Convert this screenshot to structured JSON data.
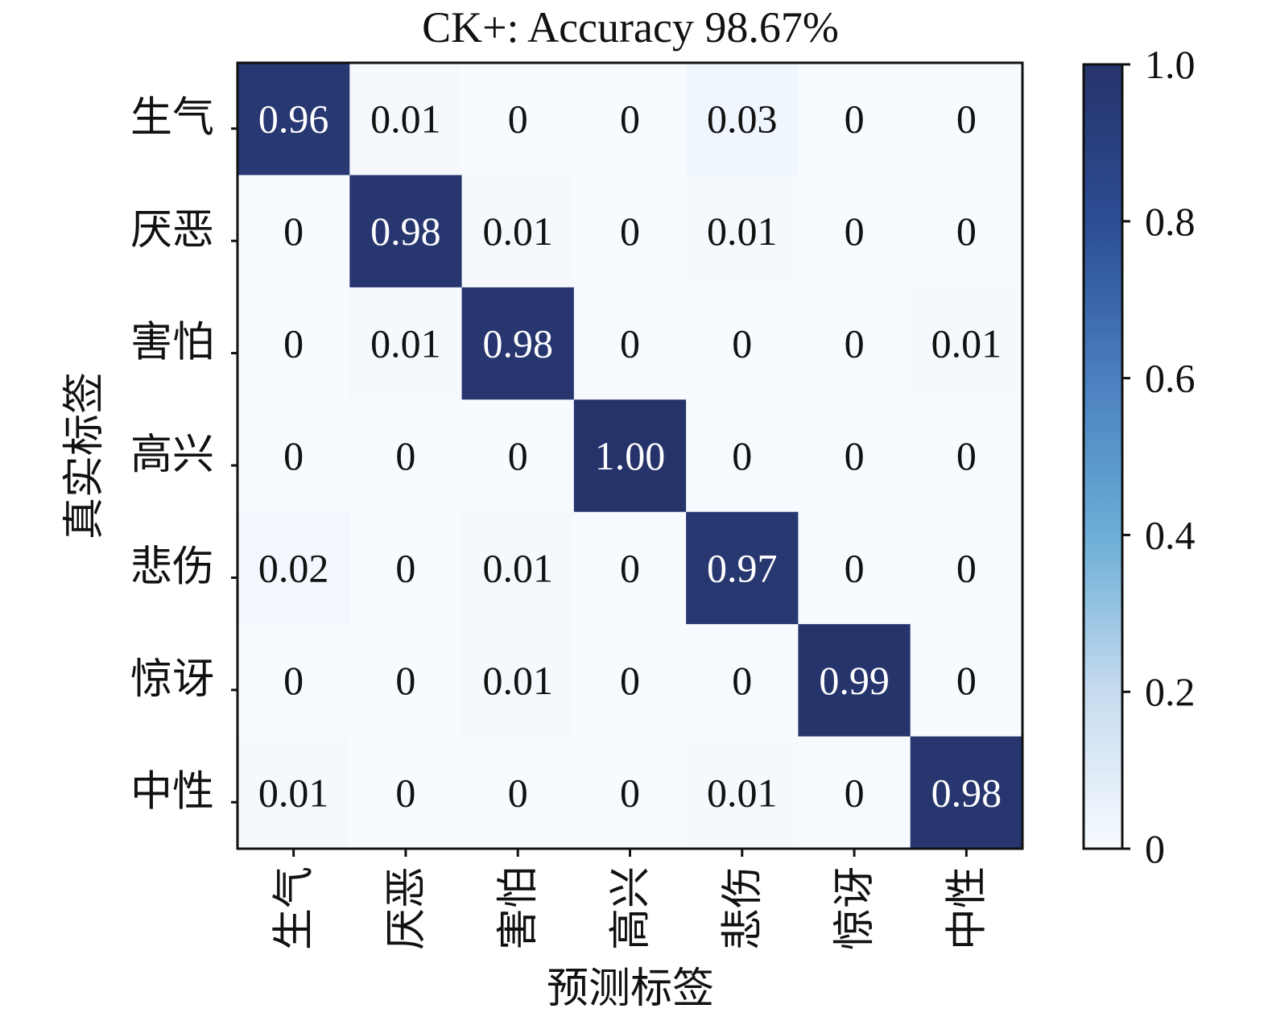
{
  "chart_data": {
    "type": "heatmap",
    "title": "CK+: Accuracy 98.67%",
    "xlabel": "预测标签",
    "ylabel": "真实标签",
    "x_categories": [
      "生气",
      "厌恶",
      "害怕",
      "高兴",
      "悲伤",
      "惊讶",
      "中性"
    ],
    "y_categories": [
      "生气",
      "厌恶",
      "害怕",
      "高兴",
      "悲伤",
      "惊讶",
      "中性"
    ],
    "values": [
      [
        0.96,
        0.01,
        0,
        0,
        0.03,
        0,
        0
      ],
      [
        0,
        0.98,
        0.01,
        0,
        0.01,
        0,
        0
      ],
      [
        0,
        0.01,
        0.98,
        0,
        0,
        0,
        0.01
      ],
      [
        0,
        0,
        0,
        1.0,
        0,
        0,
        0
      ],
      [
        0.02,
        0,
        0.01,
        0,
        0.97,
        0,
        0
      ],
      [
        0,
        0,
        0.01,
        0,
        0,
        0.99,
        0
      ],
      [
        0.01,
        0,
        0,
        0,
        0.01,
        0,
        0.98
      ]
    ],
    "cell_labels": [
      [
        "0.96",
        "0.01",
        "0",
        "0",
        "0.03",
        "0",
        "0"
      ],
      [
        "0",
        "0.98",
        "0.01",
        "0",
        "0.01",
        "0",
        "0"
      ],
      [
        "0",
        "0.01",
        "0.98",
        "0",
        "0",
        "0",
        "0.01"
      ],
      [
        "0",
        "0",
        "0",
        "1.00",
        "0",
        "0",
        "0"
      ],
      [
        "0.02",
        "0",
        "0.01",
        "0",
        "0.97",
        "0",
        "0"
      ],
      [
        "0",
        "0",
        "0.01",
        "0",
        "0",
        "0.99",
        "0"
      ],
      [
        "0.01",
        "0",
        "0",
        "0",
        "0.01",
        "0",
        "0.98"
      ]
    ],
    "colorbar": {
      "range": [
        0,
        1.0
      ],
      "ticks": [
        0,
        0.2,
        0.4,
        0.6,
        0.8,
        1.0
      ],
      "tick_labels": [
        "0",
        "0.2",
        "0.4",
        "0.6",
        "0.8",
        "1.0"
      ],
      "colors": [
        "#f7fbff",
        "#c6dbef",
        "#6baed6",
        "#4a7fbf",
        "#2c4d93",
        "#26336a"
      ]
    }
  }
}
